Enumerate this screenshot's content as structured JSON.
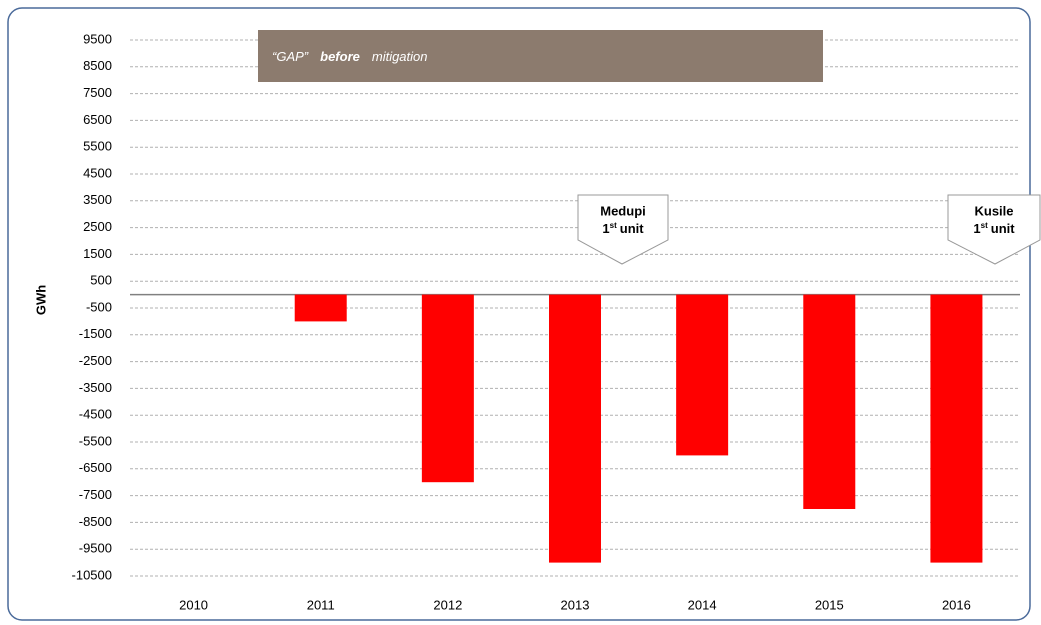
{
  "chart_data": {
    "type": "bar",
    "title": {
      "prefix": "“GAP”",
      "emphasis": "before",
      "suffix": "mitigation"
    },
    "y_label": "GWh",
    "categories": [
      "2010",
      "2011",
      "2012",
      "2013",
      "2014",
      "2015",
      "2016"
    ],
    "values": [
      null,
      -1000,
      -7000,
      -10000,
      -6000,
      -8000,
      -10000
    ],
    "color": "#ff0000",
    "ylim": [
      -10500,
      9500
    ],
    "yticks": [
      9500,
      8500,
      7500,
      6500,
      5500,
      4500,
      3500,
      2500,
      1500,
      500,
      -500,
      -1500,
      -2500,
      -3500,
      -4500,
      -5500,
      -6500,
      -7500,
      -8500,
      -9500,
      -10500
    ],
    "grid": true,
    "annotations": [
      {
        "name": "Medupi",
        "ordinal": "1",
        "suffix": "st",
        "unit": "unit"
      },
      {
        "name": "Kusile",
        "ordinal": "1",
        "suffix": "st",
        "unit": "unit"
      }
    ]
  }
}
